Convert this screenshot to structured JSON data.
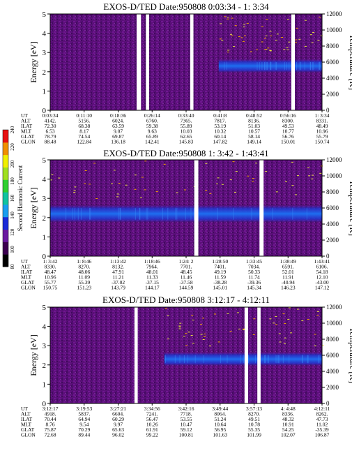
{
  "chart_data": {
    "type": "heatmap",
    "colorbar": {
      "label": "Second Harmonic Current",
      "ticks": [
        "80",
        "100",
        "120",
        "140",
        "160",
        "180",
        "200",
        "220",
        "240"
      ],
      "colors": [
        "#000000",
        "#3c0050",
        "#6a1aa0",
        "#1a2ad8",
        "#1a9ef0",
        "#10c4a0",
        "#30d030",
        "#a0e020",
        "#f0f000",
        "#f09000",
        "#e81010"
      ]
    },
    "panels": [
      {
        "title": "EXOS-D/TED   Date:950808   0:03:34 - 1: 3:34",
        "ylabel": "Energy [eV]",
        "ylabel_right": "Temperature [K]",
        "ylim": [
          0,
          5
        ],
        "yticks": [
          "0",
          "1",
          "2",
          "3",
          "4",
          "5"
        ],
        "yticks_right": [
          "0",
          "2000",
          "4000",
          "6000",
          "8000",
          "10000",
          "12000"
        ],
        "band_center": 2.3,
        "band_halfwidth": 0.35,
        "band_start_frac": 0.62,
        "gaps": [
          [
            0.318,
            0.334
          ],
          [
            0.352,
            0.364
          ],
          [
            0.515,
            0.527
          ],
          [
            0.887,
            0.9
          ]
        ],
        "table": {
          "labels": [
            "UT",
            "ALT",
            "ILAT",
            "MLT",
            "GLAT",
            "GLON"
          ],
          "columns": [
            [
              "0:03:34",
              "4142.",
              "72.30",
              "6.53",
              "78.79",
              "88.48"
            ],
            [
              "0:11:10",
              "5156.",
              "68.38",
              "8.17",
              "74.54",
              "122.84"
            ],
            [
              "0:18:36",
              "6024.",
              "63.59",
              "9.07",
              "69.87",
              "136.18"
            ],
            [
              "0:26:14",
              "6760.",
              "59.38",
              "9.63",
              "65.89",
              "142.41"
            ],
            [
              "0:33:40",
              "7365.",
              "55.89",
              "10.03",
              "62.65",
              "145.83"
            ],
            [
              "0:41:8",
              "7817.",
              "53.19",
              "10.32",
              "60.14",
              "147.82"
            ],
            [
              "0:48:52",
              "8136.",
              "51.03",
              "10.57",
              "58.14",
              "149.14"
            ],
            [
              "0:56:16",
              "8300.",
              "49.53",
              "10.77",
              "56.76",
              "150.01"
            ],
            [
              "1: 3:34",
              "8331.",
              "48.49",
              "10.96",
              "55.79",
              "150.74"
            ]
          ]
        }
      },
      {
        "title": "EXOS-D/TED   Date:950808   1: 3:42 - 1:43:41",
        "ylabel": "Energy [eV]",
        "ylabel_right": "Temperature [K]",
        "ylim": [
          0,
          5
        ],
        "yticks": [
          "0",
          "1",
          "2",
          "3",
          "4",
          "5"
        ],
        "yticks_right": [
          "0",
          "2000",
          "4000",
          "6000",
          "8000",
          "10000",
          "12000"
        ],
        "band_center": 2.2,
        "band_halfwidth": 0.45,
        "band_start_frac": 0.0,
        "gaps": [
          [
            0.53,
            0.545
          ],
          [
            0.77,
            0.785
          ]
        ],
        "table": {
          "labels": [
            "UT",
            "ALT",
            "ILAT",
            "MLT",
            "GLAT",
            "GLON"
          ],
          "columns": [
            [
              "1: 3:42",
              "8330.",
              "48.47",
              "10.96",
              "55.77",
              "150.75"
            ],
            [
              "1: 8:46",
              "8270.",
              "48.06",
              "11.09",
              "55.39",
              "151.23"
            ],
            [
              "1:13:42",
              "8132.",
              "47.91",
              "11.21",
              "-37.02",
              "143.79"
            ],
            [
              "1:18:46",
              "7964.",
              "48.01",
              "11.33",
              "-37.15",
              "144.17"
            ],
            [
              "1:24: 2",
              "7701.",
              "48.45",
              "11.46",
              "-37.58",
              "144.59"
            ],
            [
              "1:28:50",
              "7401.",
              "49.19",
              "11.59",
              "-38.28",
              "145.01"
            ],
            [
              "1:33:45",
              "7034.",
              "50.33",
              "11.74",
              "-39.36",
              "145.34"
            ],
            [
              "1:38:49",
              "6591.",
              "52.01",
              "11.91",
              "-40.94",
              "146.23"
            ],
            [
              "1:43:41",
              "6106.",
              "54.18",
              "12.10",
              "-43.00",
              "147.12"
            ]
          ]
        }
      },
      {
        "title": "EXOS-D/TED   Date:950808   3:12:17 - 4:12:11",
        "ylabel": "Energy [eV]",
        "ylabel_right": "Temperature [K]",
        "ylim": [
          0,
          5
        ],
        "yticks": [
          "0",
          "1",
          "2",
          "3",
          "4",
          "5"
        ],
        "yticks_right": [
          "0",
          "2000",
          "4000",
          "6000",
          "8000",
          "10000",
          "12000"
        ],
        "band_center": 2.3,
        "band_halfwidth": 0.35,
        "band_start_frac": 0.42,
        "gaps": [
          [
            0.31,
            0.322
          ],
          [
            0.715,
            0.728
          ],
          [
            0.762,
            0.774
          ]
        ],
        "table": {
          "labels": [
            "UT",
            "ALT",
            "ILAT",
            "MLT",
            "GLAT",
            "GLON"
          ],
          "columns": [
            [
              "3:12:17",
              "4918.",
              "70.44",
              "8.76",
              "75.87",
              "72.68"
            ],
            [
              "3:19:53",
              "5837.",
              "64.94",
              "9.54",
              "70.29",
              "89.44"
            ],
            [
              "3:27:21",
              "6604.",
              "60.29",
              "9.97",
              "65.63",
              "96.02"
            ],
            [
              "3:34:56",
              "7241.",
              "56.47",
              "10.26",
              "61.91",
              "99.22"
            ],
            [
              "3:42:16",
              "7718.",
              "53.55",
              "10.47",
              "59.12",
              "100.81"
            ],
            [
              "3:49:44",
              "8064.",
              "51.24",
              "10.64",
              "56.95",
              "101.63"
            ],
            [
              "3:57:13",
              "8270.",
              "49.51",
              "10.78",
              "55.35",
              "101.99"
            ],
            [
              "4: 4:48",
              "8336.",
              "48.32",
              "10.91",
              "54.25",
              "102.07"
            ],
            [
              "4:12:11",
              "8262.",
              "47.73",
              "11.02",
              "-35.39",
              "106.87"
            ]
          ]
        }
      }
    ]
  }
}
